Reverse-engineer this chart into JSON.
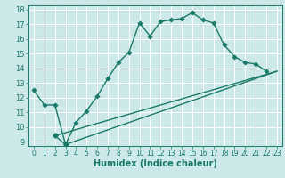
{
  "xlabel": "Humidex (Indice chaleur)",
  "bg_color": "#cce8e8",
  "grid_color": "#ffffff",
  "line_color": "#1a7a6a",
  "xlim": [
    -0.5,
    23.5
  ],
  "ylim": [
    8.7,
    18.3
  ],
  "xticks": [
    0,
    1,
    2,
    3,
    4,
    5,
    6,
    7,
    8,
    9,
    10,
    11,
    12,
    13,
    14,
    15,
    16,
    17,
    18,
    19,
    20,
    21,
    22,
    23
  ],
  "yticks": [
    9,
    10,
    11,
    12,
    13,
    14,
    15,
    16,
    17,
    18
  ],
  "line1_x": [
    0,
    1,
    2,
    3,
    4,
    5,
    6,
    7,
    8,
    9,
    10,
    11,
    12,
    13,
    14,
    15,
    16,
    17,
    18,
    19,
    20,
    21,
    22
  ],
  "line1_y": [
    12.5,
    11.5,
    11.5,
    8.8,
    10.3,
    11.1,
    12.1,
    13.3,
    14.4,
    15.1,
    17.1,
    16.2,
    17.2,
    17.3,
    17.4,
    17.8,
    17.3,
    17.1,
    15.6,
    14.8,
    14.4,
    14.3,
    13.8
  ],
  "line2_x": [
    2,
    23
  ],
  "line2_y": [
    9.4,
    13.8
  ],
  "line3_x": [
    3,
    23
  ],
  "line3_y": [
    8.8,
    13.8
  ],
  "line4_x": [
    2,
    3
  ],
  "line4_y": [
    9.4,
    8.8
  ],
  "marker_size": 2.8,
  "line_width": 1.0,
  "font_size_ticks": 5.5,
  "font_size_xlabel": 7.0
}
